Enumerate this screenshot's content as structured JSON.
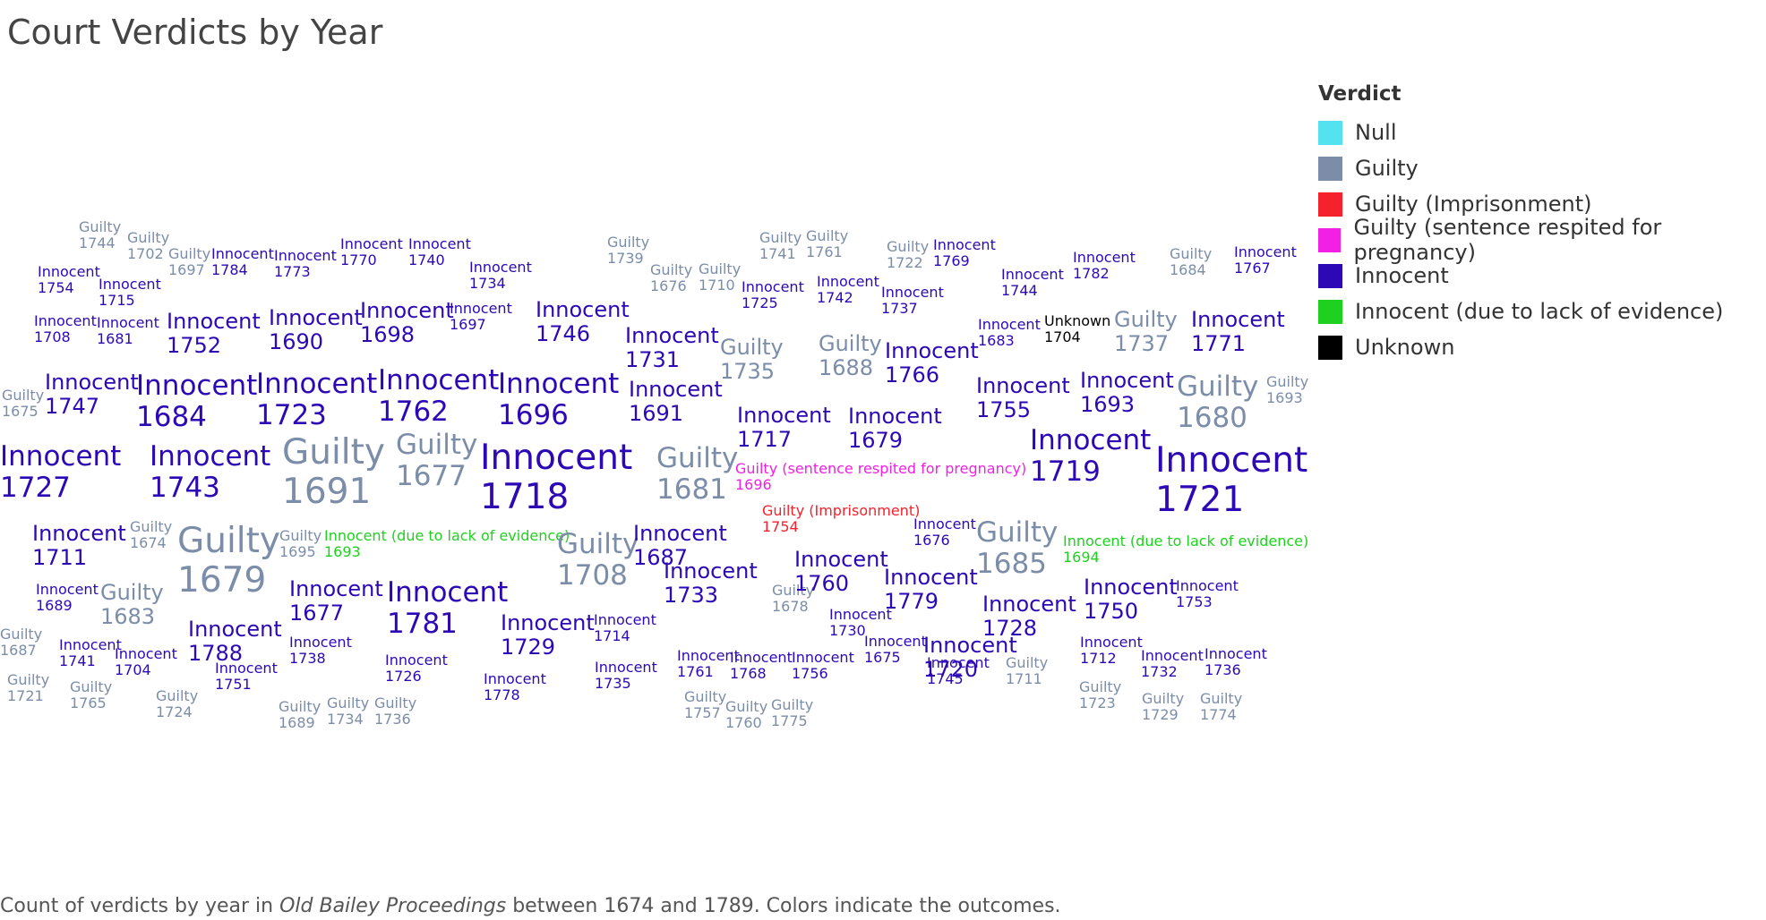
{
  "title": "Court Verdicts by Year",
  "caption": {
    "pre": "Count of verdicts by year in ",
    "em": "Old Bailey Proceedings",
    "post": " between 1674 and 1789. Colors indicate the outcomes."
  },
  "legend": {
    "title": "Verdict",
    "items": [
      {
        "label": "Null",
        "color": "#55e2f0"
      },
      {
        "label": "Guilty",
        "color": "#7b8da8"
      },
      {
        "label": "Guilty (Imprisonment)",
        "color": "#f5222d"
      },
      {
        "label": "Guilty (sentence respited for pregnancy)",
        "color": "#f21fe5"
      },
      {
        "label": "Innocent",
        "color": "#2d09b5"
      },
      {
        "label": "Innocent (due to lack of evidence)",
        "color": "#1fd11f"
      },
      {
        "label": "Unknown",
        "color": "#000000"
      }
    ]
  },
  "chart_data": {
    "type": "word-cloud",
    "color_by": "verdict",
    "verdict_colors": {
      "Guilty": "#7b8da8",
      "Guilty (Imprisonment)": "#f5222d",
      "Guilty (sentence respited for pregnancy)": "#f21fe5",
      "Innocent": "#2d09b5",
      "Innocent (due to lack of evidence)": "#1fd11f",
      "Unknown": "#000000"
    },
    "words": [
      {
        "verdict": "Guilty",
        "year": "1744",
        "weight": 1
      },
      {
        "verdict": "Guilty",
        "year": "1702",
        "weight": 1
      },
      {
        "verdict": "Guilty",
        "year": "1697",
        "weight": 1
      },
      {
        "verdict": "Innocent",
        "year": "1784",
        "weight": 1
      },
      {
        "verdict": "Innocent",
        "year": "1773",
        "weight": 1
      },
      {
        "verdict": "Innocent",
        "year": "1770",
        "weight": 1
      },
      {
        "verdict": "Innocent",
        "year": "1740",
        "weight": 1
      },
      {
        "verdict": "Innocent",
        "year": "1734",
        "weight": 1
      },
      {
        "verdict": "Guilty",
        "year": "1739",
        "weight": 1
      },
      {
        "verdict": "Guilty",
        "year": "1676",
        "weight": 1
      },
      {
        "verdict": "Guilty",
        "year": "1710",
        "weight": 1
      },
      {
        "verdict": "Guilty",
        "year": "1741",
        "weight": 1
      },
      {
        "verdict": "Guilty",
        "year": "1761",
        "weight": 1
      },
      {
        "verdict": "Guilty",
        "year": "1722",
        "weight": 1
      },
      {
        "verdict": "Innocent",
        "year": "1769",
        "weight": 1
      },
      {
        "verdict": "Innocent",
        "year": "1725",
        "weight": 1
      },
      {
        "verdict": "Innocent",
        "year": "1742",
        "weight": 1
      },
      {
        "verdict": "Innocent",
        "year": "1737",
        "weight": 1
      },
      {
        "verdict": "Innocent",
        "year": "1744",
        "weight": 1
      },
      {
        "verdict": "Innocent",
        "year": "1782",
        "weight": 1
      },
      {
        "verdict": "Guilty",
        "year": "1684",
        "weight": 1
      },
      {
        "verdict": "Innocent",
        "year": "1767",
        "weight": 1
      },
      {
        "verdict": "Innocent",
        "year": "1754",
        "weight": 1
      },
      {
        "verdict": "Innocent",
        "year": "1715",
        "weight": 1
      },
      {
        "verdict": "Innocent",
        "year": "1708",
        "weight": 1
      },
      {
        "verdict": "Innocent",
        "year": "1681",
        "weight": 1
      },
      {
        "verdict": "Innocent",
        "year": "1697",
        "weight": 1
      },
      {
        "verdict": "Innocent",
        "year": "1683",
        "weight": 1
      },
      {
        "verdict": "Unknown",
        "year": "1704",
        "weight": 1
      },
      {
        "verdict": "Innocent",
        "year": "1752",
        "weight": 2
      },
      {
        "verdict": "Innocent",
        "year": "1690",
        "weight": 2
      },
      {
        "verdict": "Innocent",
        "year": "1698",
        "weight": 2
      },
      {
        "verdict": "Innocent",
        "year": "1746",
        "weight": 2
      },
      {
        "verdict": "Innocent",
        "year": "1731",
        "weight": 2
      },
      {
        "verdict": "Guilty",
        "year": "1735",
        "weight": 2
      },
      {
        "verdict": "Guilty",
        "year": "1688",
        "weight": 2
      },
      {
        "verdict": "Innocent",
        "year": "1766",
        "weight": 2
      },
      {
        "verdict": "Guilty",
        "year": "1737",
        "weight": 2
      },
      {
        "verdict": "Innocent",
        "year": "1771",
        "weight": 2
      },
      {
        "verdict": "Innocent",
        "year": "1747",
        "weight": 2
      },
      {
        "verdict": "Innocent",
        "year": "1684",
        "weight": 3
      },
      {
        "verdict": "Innocent",
        "year": "1723",
        "weight": 3
      },
      {
        "verdict": "Innocent",
        "year": "1762",
        "weight": 3
      },
      {
        "verdict": "Innocent",
        "year": "1696",
        "weight": 3
      },
      {
        "verdict": "Innocent",
        "year": "1691",
        "weight": 2
      },
      {
        "verdict": "Innocent",
        "year": "1717",
        "weight": 2
      },
      {
        "verdict": "Innocent",
        "year": "1679",
        "weight": 2
      },
      {
        "verdict": "Innocent",
        "year": "1755",
        "weight": 2
      },
      {
        "verdict": "Innocent",
        "year": "1693",
        "weight": 2
      },
      {
        "verdict": "Guilty",
        "year": "1680",
        "weight": 3
      },
      {
        "verdict": "Guilty",
        "year": "1675",
        "weight": 1
      },
      {
        "verdict": "Guilty",
        "year": "1693",
        "weight": 1
      },
      {
        "verdict": "Innocent",
        "year": "1727",
        "weight": 3
      },
      {
        "verdict": "Innocent",
        "year": "1743",
        "weight": 3
      },
      {
        "verdict": "Guilty",
        "year": "1691",
        "weight": 4
      },
      {
        "verdict": "Guilty",
        "year": "1677",
        "weight": 3
      },
      {
        "verdict": "Innocent",
        "year": "1718",
        "weight": 4
      },
      {
        "verdict": "Guilty",
        "year": "1681",
        "weight": 3
      },
      {
        "verdict": "Guilty (sentence respited for pregnancy)",
        "year": "1696",
        "weight": 1
      },
      {
        "verdict": "Innocent",
        "year": "1719",
        "weight": 3
      },
      {
        "verdict": "Innocent",
        "year": "1721",
        "weight": 4
      },
      {
        "verdict": "Guilty (Imprisonment)",
        "year": "1754",
        "weight": 1
      },
      {
        "verdict": "Innocent",
        "year": "1711",
        "weight": 2
      },
      {
        "verdict": "Guilty",
        "year": "1674",
        "weight": 1
      },
      {
        "verdict": "Guilty",
        "year": "1679",
        "weight": 4
      },
      {
        "verdict": "Guilty",
        "year": "1695",
        "weight": 1
      },
      {
        "verdict": "Innocent (due to lack of evidence)",
        "year": "1693",
        "weight": 1
      },
      {
        "verdict": "Guilty",
        "year": "1708",
        "weight": 3
      },
      {
        "verdict": "Innocent",
        "year": "1687",
        "weight": 2
      },
      {
        "verdict": "Innocent",
        "year": "1676",
        "weight": 1
      },
      {
        "verdict": "Guilty",
        "year": "1685",
        "weight": 3
      },
      {
        "verdict": "Innocent (due to lack of evidence)",
        "year": "1694",
        "weight": 1
      },
      {
        "verdict": "Innocent",
        "year": "1689",
        "weight": 1
      },
      {
        "verdict": "Guilty",
        "year": "1683",
        "weight": 2
      },
      {
        "verdict": "Innocent",
        "year": "1677",
        "weight": 2
      },
      {
        "verdict": "Innocent",
        "year": "1781",
        "weight": 3
      },
      {
        "verdict": "Innocent",
        "year": "1729",
        "weight": 2
      },
      {
        "verdict": "Innocent",
        "year": "1733",
        "weight": 2
      },
      {
        "verdict": "Guilty",
        "year": "1678",
        "weight": 1
      },
      {
        "verdict": "Innocent",
        "year": "1720",
        "weight": 2
      },
      {
        "verdict": "Innocent",
        "year": "1760",
        "weight": 2
      },
      {
        "verdict": "Innocent",
        "year": "1779",
        "weight": 2
      },
      {
        "verdict": "Innocent",
        "year": "1728",
        "weight": 2
      },
      {
        "verdict": "Innocent",
        "year": "1750",
        "weight": 2
      },
      {
        "verdict": "Innocent",
        "year": "1753",
        "weight": 1
      },
      {
        "verdict": "Guilty",
        "year": "1687",
        "weight": 1
      },
      {
        "verdict": "Innocent",
        "year": "1741",
        "weight": 1
      },
      {
        "verdict": "Innocent",
        "year": "1704",
        "weight": 1
      },
      {
        "verdict": "Innocent",
        "year": "1788",
        "weight": 2
      },
      {
        "verdict": "Innocent",
        "year": "1738",
        "weight": 1
      },
      {
        "verdict": "Innocent",
        "year": "1726",
        "weight": 1
      },
      {
        "verdict": "Innocent",
        "year": "1714",
        "weight": 1
      },
      {
        "verdict": "Innocent",
        "year": "1730",
        "weight": 1
      },
      {
        "verdict": "Innocent",
        "year": "1675",
        "weight": 1
      },
      {
        "verdict": "Innocent",
        "year": "1712",
        "weight": 1
      },
      {
        "verdict": "Innocent",
        "year": "1732",
        "weight": 1
      },
      {
        "verdict": "Innocent",
        "year": "1736",
        "weight": 1
      },
      {
        "verdict": "Innocent",
        "year": "1751",
        "weight": 1
      },
      {
        "verdict": "Innocent",
        "year": "1778",
        "weight": 1
      },
      {
        "verdict": "Innocent",
        "year": "1735",
        "weight": 1
      },
      {
        "verdict": "Innocent",
        "year": "1761",
        "weight": 1
      },
      {
        "verdict": "Innocent",
        "year": "1768",
        "weight": 1
      },
      {
        "verdict": "Innocent",
        "year": "1756",
        "weight": 1
      },
      {
        "verdict": "Innocent",
        "year": "1745",
        "weight": 1
      },
      {
        "verdict": "Guilty",
        "year": "1711",
        "weight": 1
      },
      {
        "verdict": "Guilty",
        "year": "1721",
        "weight": 1
      },
      {
        "verdict": "Guilty",
        "year": "1765",
        "weight": 1
      },
      {
        "verdict": "Guilty",
        "year": "1724",
        "weight": 1
      },
      {
        "verdict": "Guilty",
        "year": "1689",
        "weight": 1
      },
      {
        "verdict": "Guilty",
        "year": "1734",
        "weight": 1
      },
      {
        "verdict": "Guilty",
        "year": "1736",
        "weight": 1
      },
      {
        "verdict": "Guilty",
        "year": "1757",
        "weight": 1
      },
      {
        "verdict": "Guilty",
        "year": "1760",
        "weight": 1
      },
      {
        "verdict": "Guilty",
        "year": "1775",
        "weight": 1
      },
      {
        "verdict": "Guilty",
        "year": "1723",
        "weight": 1
      },
      {
        "verdict": "Guilty",
        "year": "1729",
        "weight": 1
      },
      {
        "verdict": "Guilty",
        "year": "1774",
        "weight": 1
      }
    ]
  }
}
